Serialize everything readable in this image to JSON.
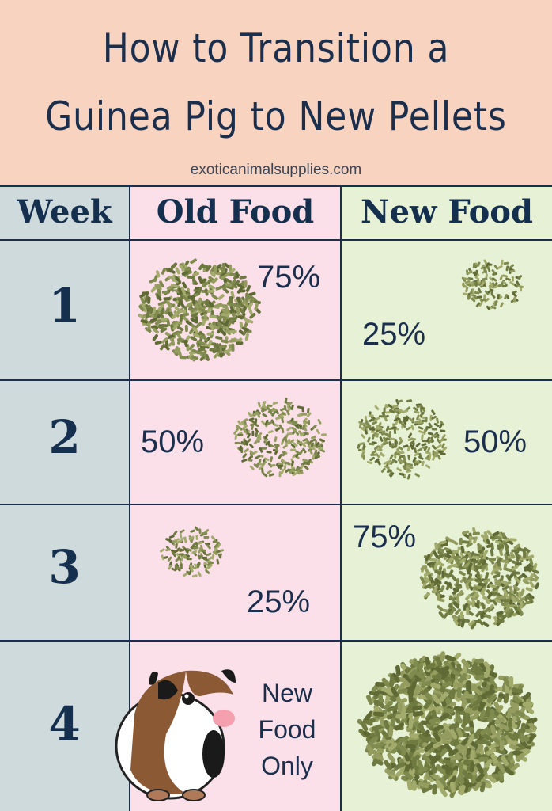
{
  "header": {
    "title_line1": "How to Transition a",
    "title_line2": "Guinea Pig to New Pellets",
    "website": "exoticanimalsupplies.com"
  },
  "table": {
    "columns": [
      "Week",
      "Old Food",
      "New Food"
    ],
    "rows": [
      {
        "week": "1",
        "old_pct": "75%",
        "new_pct": "25%",
        "old_value": 75,
        "new_value": 25
      },
      {
        "week": "2",
        "old_pct": "50%",
        "new_pct": "50%",
        "old_value": 50,
        "new_value": 50
      },
      {
        "week": "3",
        "old_pct": "25%",
        "new_pct": "75%",
        "old_value": 25,
        "new_value": 75
      },
      {
        "week": "4",
        "old_note": "New Food Only",
        "new_value": 100,
        "old_image": "guinea-pig"
      }
    ]
  },
  "colors": {
    "header_bg": "#f7d3c0",
    "week_col": "#cfdadc",
    "old_col": "#fbdfe9",
    "new_col": "#e6f1d6",
    "text": "#1b2f4d",
    "pellet": "#7f8a4e"
  }
}
